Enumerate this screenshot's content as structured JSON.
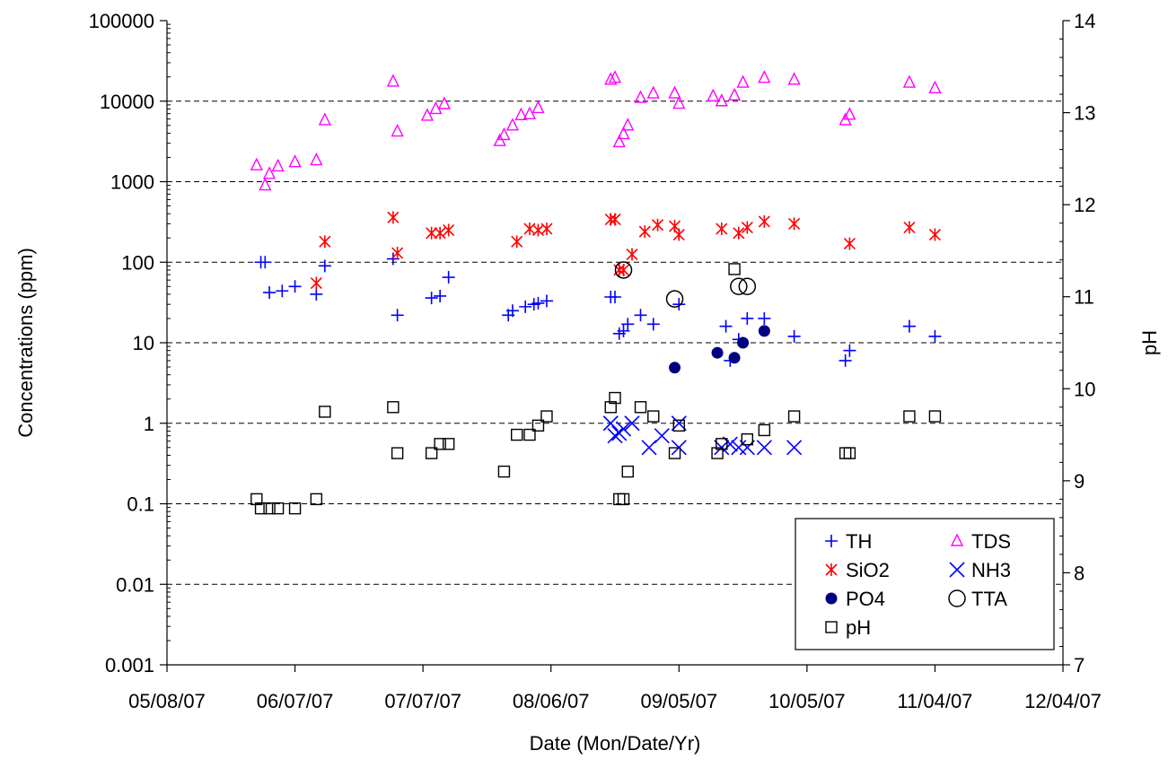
{
  "chart_data": {
    "type": "scatter",
    "xlabel": "Date (Mon/Date/Yr)",
    "ylabel": "Concentrations (ppm)",
    "y2label": "pH",
    "x_axis": {
      "type": "date",
      "range": [
        "2007-05-08",
        "2007-12-04"
      ],
      "tick_values": [
        "2007-05-08",
        "2007-06-07",
        "2007-07-07",
        "2007-08-06",
        "2007-09-05",
        "2007-10-05",
        "2007-11-04",
        "2007-12-04"
      ],
      "tick_labels": [
        "05/08/07",
        "06/07/07",
        "07/07/07",
        "08/06/07",
        "09/05/07",
        "10/05/07",
        "11/04/07",
        "12/04/07"
      ]
    },
    "y_axis": {
      "scale": "log",
      "range": [
        0.001,
        100000
      ],
      "tick_values": [
        0.001,
        0.01,
        0.1,
        1,
        10,
        100,
        1000,
        10000,
        100000
      ],
      "tick_labels": [
        "0.001",
        "0.01",
        "0.1",
        "1",
        "10",
        "100",
        "1000",
        "10000",
        "100000"
      ]
    },
    "y2_axis": {
      "scale": "linear",
      "range": [
        7,
        14
      ],
      "tick_values": [
        7,
        8,
        9,
        10,
        11,
        12,
        13,
        14
      ],
      "tick_labels": [
        "7",
        "8",
        "9",
        "10",
        "11",
        "12",
        "13",
        "14"
      ]
    },
    "grid": "horizontal dashed at major y ticks",
    "legend_position": "bottom-right",
    "colors": {
      "TH": "#0000ff",
      "TDS": "#ff00ff",
      "SiO2": "#ff0000",
      "NH3": "#0000ff",
      "PO4": "#000080",
      "TTA": "#000000",
      "pH": "#000000"
    },
    "series": [
      {
        "name": "TH",
        "marker": "plus",
        "axis": "left",
        "points": [
          [
            "2007-05-30",
            100
          ],
          [
            "2007-05-31",
            100
          ],
          [
            "2007-06-01",
            42
          ],
          [
            "2007-06-04",
            44
          ],
          [
            "2007-06-07",
            50
          ],
          [
            "2007-06-12",
            40
          ],
          [
            "2007-06-14",
            90
          ],
          [
            "2007-06-30",
            110
          ],
          [
            "2007-07-01",
            22
          ],
          [
            "2007-07-09",
            36
          ],
          [
            "2007-07-11",
            38
          ],
          [
            "2007-07-13",
            65
          ],
          [
            "2007-07-27",
            22
          ],
          [
            "2007-07-28",
            25
          ],
          [
            "2007-07-31",
            28
          ],
          [
            "2007-08-02",
            30
          ],
          [
            "2007-08-03",
            31
          ],
          [
            "2007-08-05",
            33
          ],
          [
            "2007-08-20",
            37
          ],
          [
            "2007-08-21",
            37
          ],
          [
            "2007-08-22",
            13
          ],
          [
            "2007-08-23",
            14
          ],
          [
            "2007-08-24",
            17
          ],
          [
            "2007-08-27",
            22
          ],
          [
            "2007-08-30",
            17
          ],
          [
            "2007-09-05",
            30
          ],
          [
            "2007-09-16",
            16
          ],
          [
            "2007-09-17",
            6
          ],
          [
            "2007-09-19",
            11
          ],
          [
            "2007-09-21",
            20
          ],
          [
            "2007-09-25",
            20
          ],
          [
            "2007-10-02",
            12
          ],
          [
            "2007-10-14",
            6
          ],
          [
            "2007-10-15",
            8
          ],
          [
            "2007-10-29",
            16
          ],
          [
            "2007-11-04",
            12
          ]
        ]
      },
      {
        "name": "TDS",
        "marker": "triangle",
        "axis": "left",
        "points": [
          [
            "2007-05-29",
            1600
          ],
          [
            "2007-05-31",
            900
          ],
          [
            "2007-06-01",
            1250
          ],
          [
            "2007-06-03",
            1550
          ],
          [
            "2007-06-07",
            1750
          ],
          [
            "2007-06-12",
            1850
          ],
          [
            "2007-06-14",
            5800
          ],
          [
            "2007-06-30",
            17500
          ],
          [
            "2007-07-01",
            4200
          ],
          [
            "2007-07-08",
            6600
          ],
          [
            "2007-07-10",
            8000
          ],
          [
            "2007-07-12",
            9200
          ],
          [
            "2007-07-25",
            3200
          ],
          [
            "2007-07-26",
            3800
          ],
          [
            "2007-07-28",
            5000
          ],
          [
            "2007-07-30",
            6700
          ],
          [
            "2007-08-01",
            6900
          ],
          [
            "2007-08-03",
            8200
          ],
          [
            "2007-08-20",
            18500
          ],
          [
            "2007-08-21",
            19500
          ],
          [
            "2007-08-22",
            3100
          ],
          [
            "2007-08-23",
            3900
          ],
          [
            "2007-08-24",
            5000
          ],
          [
            "2007-08-27",
            11000
          ],
          [
            "2007-08-30",
            12500
          ],
          [
            "2007-09-04",
            12500
          ],
          [
            "2007-09-05",
            9300
          ],
          [
            "2007-09-13",
            11500
          ],
          [
            "2007-09-15",
            10000
          ],
          [
            "2007-09-18",
            11800
          ],
          [
            "2007-09-20",
            17000
          ],
          [
            "2007-09-25",
            19500
          ],
          [
            "2007-10-02",
            18500
          ],
          [
            "2007-10-14",
            5800
          ],
          [
            "2007-10-15",
            6800
          ],
          [
            "2007-10-29",
            17000
          ],
          [
            "2007-11-04",
            14500
          ]
        ]
      },
      {
        "name": "SiO2",
        "marker": "asterisk",
        "axis": "left",
        "points": [
          [
            "2007-06-12",
            55
          ],
          [
            "2007-06-14",
            180
          ],
          [
            "2007-06-30",
            360
          ],
          [
            "2007-07-01",
            130
          ],
          [
            "2007-07-09",
            230
          ],
          [
            "2007-07-11",
            230
          ],
          [
            "2007-07-13",
            250
          ],
          [
            "2007-07-29",
            180
          ],
          [
            "2007-08-01",
            260
          ],
          [
            "2007-08-03",
            250
          ],
          [
            "2007-08-05",
            260
          ],
          [
            "2007-08-20",
            340
          ],
          [
            "2007-08-21",
            340
          ],
          [
            "2007-08-22",
            80
          ],
          [
            "2007-08-23",
            80
          ],
          [
            "2007-08-25",
            125
          ],
          [
            "2007-08-28",
            240
          ],
          [
            "2007-08-31",
            290
          ],
          [
            "2007-09-04",
            280
          ],
          [
            "2007-09-05",
            220
          ],
          [
            "2007-09-15",
            260
          ],
          [
            "2007-09-19",
            230
          ],
          [
            "2007-09-21",
            270
          ],
          [
            "2007-09-25",
            320
          ],
          [
            "2007-10-02",
            300
          ],
          [
            "2007-10-15",
            170
          ],
          [
            "2007-10-29",
            270
          ],
          [
            "2007-11-04",
            220
          ]
        ]
      },
      {
        "name": "NH3",
        "marker": "x",
        "axis": "left",
        "points": [
          [
            "2007-08-20",
            1.0
          ],
          [
            "2007-08-21",
            0.7
          ],
          [
            "2007-08-22",
            0.75
          ],
          [
            "2007-08-23",
            0.85
          ],
          [
            "2007-08-25",
            1.0
          ],
          [
            "2007-08-29",
            0.5
          ],
          [
            "2007-09-01",
            0.7
          ],
          [
            "2007-09-05",
            1.0
          ],
          [
            "2007-09-05",
            0.5
          ],
          [
            "2007-09-15",
            0.5
          ],
          [
            "2007-09-17",
            0.55
          ],
          [
            "2007-09-19",
            0.5
          ],
          [
            "2007-09-21",
            0.5
          ],
          [
            "2007-09-25",
            0.5
          ],
          [
            "2007-10-02",
            0.5
          ]
        ]
      },
      {
        "name": "PO4",
        "marker": "filled-circle",
        "axis": "left",
        "points": [
          [
            "2007-09-04",
            4.9
          ],
          [
            "2007-09-14",
            7.5
          ],
          [
            "2007-09-18",
            6.5
          ],
          [
            "2007-09-20",
            10
          ],
          [
            "2007-09-25",
            14
          ]
        ]
      },
      {
        "name": "TTA",
        "marker": "open-circle",
        "axis": "left",
        "points": [
          [
            "2007-08-23",
            80
          ],
          [
            "2007-09-04",
            35
          ],
          [
            "2007-09-19",
            50
          ],
          [
            "2007-09-21",
            50
          ]
        ]
      },
      {
        "name": "pH",
        "marker": "open-square",
        "axis": "right",
        "points": [
          [
            "2007-05-29",
            8.8
          ],
          [
            "2007-05-30",
            8.7
          ],
          [
            "2007-06-01",
            8.7
          ],
          [
            "2007-06-03",
            8.7
          ],
          [
            "2007-06-07",
            8.7
          ],
          [
            "2007-06-12",
            8.8
          ],
          [
            "2007-06-14",
            9.75
          ],
          [
            "2007-06-30",
            9.8
          ],
          [
            "2007-07-01",
            9.3
          ],
          [
            "2007-07-09",
            9.3
          ],
          [
            "2007-07-11",
            9.4
          ],
          [
            "2007-07-13",
            9.4
          ],
          [
            "2007-07-26",
            9.1
          ],
          [
            "2007-07-29",
            9.5
          ],
          [
            "2007-08-01",
            9.5
          ],
          [
            "2007-08-03",
            9.6
          ],
          [
            "2007-08-05",
            9.7
          ],
          [
            "2007-08-20",
            9.8
          ],
          [
            "2007-08-21",
            9.9
          ],
          [
            "2007-08-22",
            8.8
          ],
          [
            "2007-08-23",
            8.8
          ],
          [
            "2007-08-24",
            9.1
          ],
          [
            "2007-08-27",
            9.8
          ],
          [
            "2007-08-30",
            9.7
          ],
          [
            "2007-09-04",
            9.3
          ],
          [
            "2007-09-05",
            9.6
          ],
          [
            "2007-09-14",
            9.3
          ],
          [
            "2007-09-15",
            9.4
          ],
          [
            "2007-09-18",
            11.3
          ],
          [
            "2007-09-21",
            9.45
          ],
          [
            "2007-09-25",
            9.55
          ],
          [
            "2007-10-02",
            9.7
          ],
          [
            "2007-10-14",
            9.3
          ],
          [
            "2007-10-15",
            9.3
          ],
          [
            "2007-10-29",
            9.7
          ],
          [
            "2007-11-04",
            9.7
          ]
        ]
      }
    ],
    "legend": [
      {
        "name": "TH",
        "marker": "plus"
      },
      {
        "name": "TDS",
        "marker": "triangle"
      },
      {
        "name": "SiO2",
        "marker": "asterisk"
      },
      {
        "name": "NH3",
        "marker": "x"
      },
      {
        "name": "PO4",
        "marker": "filled-circle"
      },
      {
        "name": "TTA",
        "marker": "open-circle"
      },
      {
        "name": "pH",
        "marker": "open-square"
      }
    ]
  }
}
